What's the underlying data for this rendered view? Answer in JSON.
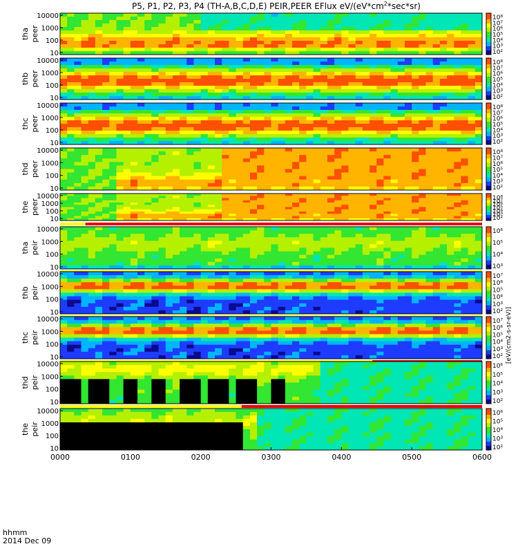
{
  "chart_data": {
    "type": "heatmap",
    "title": "P5, P1, P2, P3, P4 (TH-A,B,C,D,E) PEIR,PEER EFlux eV/(eV*cm",
    "title_sup": "2",
    "title_end": "*sec*sr)",
    "x_label_line1": "hhmm",
    "x_label_line2": "2014 Dec 09",
    "x_ticks": [
      "0000",
      "0100",
      "0200",
      "0300",
      "0400",
      "0500",
      "0600"
    ],
    "x_range_hours": [
      0,
      6
    ],
    "y_scale": "log",
    "colorbar_label": "[eV/(cm2-s-sr-eV)]",
    "panels": [
      {
        "probe": "tha",
        "species": "peer",
        "y_ticks": [
          "10000",
          "1000",
          "100",
          "10"
        ],
        "cb_ticks": [
          "10⁸",
          "10⁷",
          "10⁶",
          "10⁵",
          "10⁴",
          "10³",
          "10²"
        ],
        "palette": "warm",
        "flag_bar": null
      },
      {
        "probe": "thb",
        "species": "peer",
        "y_ticks": [
          "10000",
          "1000",
          "100",
          "10"
        ],
        "cb_ticks": [
          "10⁸",
          "10⁷",
          "10⁶",
          "10⁵",
          "10⁴",
          "10³",
          "10²"
        ],
        "palette": "band_hot",
        "flag_bar": null
      },
      {
        "probe": "thc",
        "species": "peer",
        "y_ticks": [
          "10000",
          "1000",
          "100",
          "10"
        ],
        "cb_ticks": [
          "10⁸",
          "10⁷",
          "10⁶",
          "10⁵",
          "10⁴",
          "10³",
          "10²"
        ],
        "palette": "band_hot",
        "flag_bar": null
      },
      {
        "probe": "thd",
        "species": "peer",
        "y_ticks": [
          "10000",
          "1000",
          "100",
          "10"
        ],
        "cb_ticks": [
          "10⁸",
          "10⁷",
          "10⁶",
          "10⁵",
          "10⁴",
          "10³",
          "10²"
        ],
        "palette": "red_late",
        "flag_bar": null
      },
      {
        "probe": "the",
        "species": "peer",
        "y_ticks": [
          "10000",
          "1000",
          "100",
          "10"
        ],
        "cb_ticks": [
          "10⁸",
          "10⁷",
          "10⁶",
          "10⁵",
          "10⁴",
          "10³",
          "10²"
        ],
        "palette": "red_late",
        "flag_bar": "yellow_red_early"
      },
      {
        "probe": "tha",
        "species": "peir",
        "y_ticks": [
          "10000",
          "1000",
          "100",
          "10"
        ],
        "cb_ticks": [
          "10⁶",
          "10⁵",
          "10⁴",
          "10³"
        ],
        "palette": "ion_green",
        "flag_bar": "yellow"
      },
      {
        "probe": "thb",
        "species": "peir",
        "y_ticks": [
          "10000",
          "1000",
          "100",
          "10"
        ],
        "cb_ticks": [
          "10⁷",
          "10⁶",
          "10⁵",
          "10⁴",
          "10³",
          "10²"
        ],
        "palette": "ion_band",
        "flag_bar": "yellow"
      },
      {
        "probe": "thc",
        "species": "peir",
        "y_ticks": [
          "10000",
          "1000",
          "100",
          "10"
        ],
        "cb_ticks": [
          "10⁷",
          "10⁶",
          "10⁵",
          "10⁴",
          "10³",
          "10²"
        ],
        "palette": "ion_band",
        "flag_bar": "yellow_red_late"
      },
      {
        "probe": "thd",
        "species": "peir",
        "y_ticks": [
          "10000",
          "1000",
          "100",
          "10"
        ],
        "cb_ticks": [
          "10⁶",
          "10⁵",
          "10⁴",
          "10³",
          "10²"
        ],
        "palette": "ion_black",
        "flag_bar": "yellow_red_mid"
      },
      {
        "probe": "the",
        "species": "peir",
        "y_ticks": [
          "10000",
          "1000",
          "100",
          "10"
        ],
        "cb_ticks": [
          "10⁶",
          "10⁵",
          "10⁴",
          "10³",
          "10²"
        ],
        "palette": "ion_black_early",
        "flag_bar": null
      }
    ]
  },
  "colors": {
    "spectrum": [
      "#0a0a8c",
      "#1e3cff",
      "#00b4ff",
      "#00e6b4",
      "#32e632",
      "#b4f000",
      "#ffff00",
      "#ffb400",
      "#ff5000",
      "#e60000"
    ],
    "flag_yellow": "#ffff00",
    "flag_red": "#e60000"
  }
}
